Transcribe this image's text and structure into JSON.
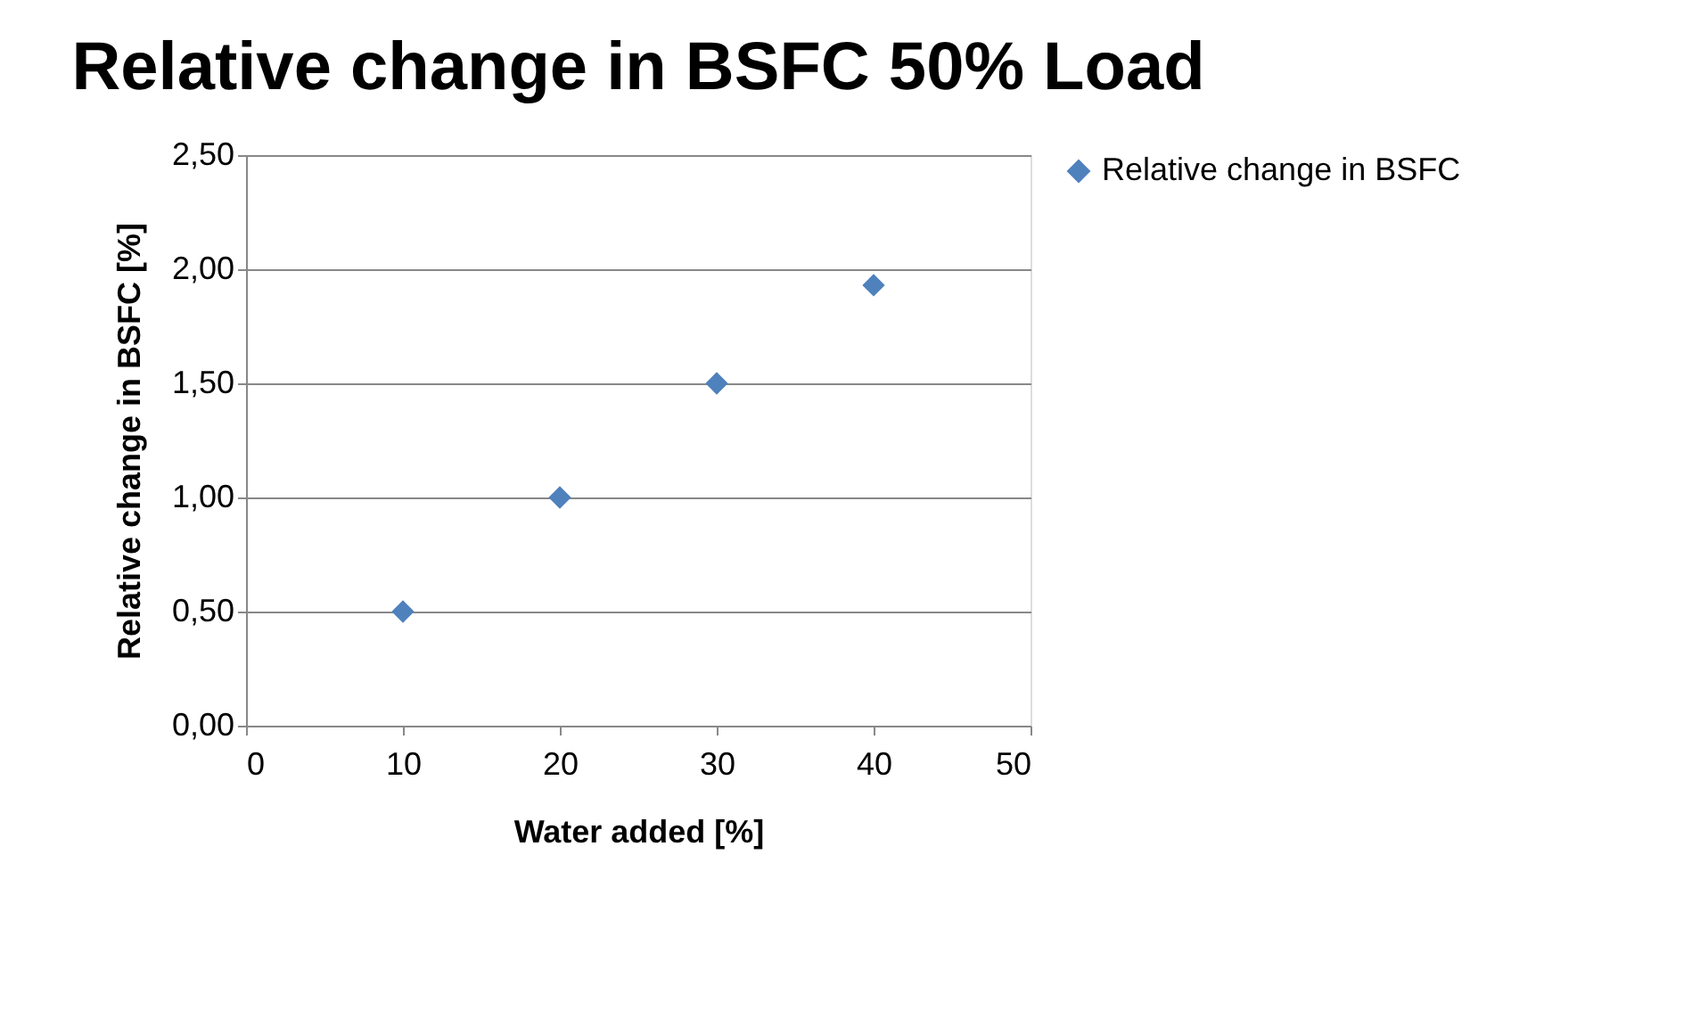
{
  "chart_data": {
    "type": "scatter",
    "title": "Relative change in BSFC 50% Load",
    "xlabel": "Water added [%]",
    "ylabel": "Relative change in BSFC [%]",
    "x": [
      10,
      20,
      30,
      40
    ],
    "series": [
      {
        "name": "Relative change in BSFC",
        "color": "#4f81bd",
        "values": [
          0.5,
          1.0,
          1.5,
          1.93
        ]
      }
    ],
    "xlim": [
      0,
      50
    ],
    "xticks": [
      0,
      10,
      20,
      30,
      40,
      50
    ],
    "ylim": [
      0,
      2.5
    ],
    "yticks": [
      {
        "value": 0,
        "label": "0,00"
      },
      {
        "value": 0.5,
        "label": "0,50"
      },
      {
        "value": 1,
        "label": "1,00"
      },
      {
        "value": 1.5,
        "label": "1,50"
      },
      {
        "value": 2,
        "label": "2,00"
      },
      {
        "value": 2.5,
        "label": "2,50"
      }
    ],
    "grid": "y",
    "legend": "right",
    "marker": "diamond"
  }
}
